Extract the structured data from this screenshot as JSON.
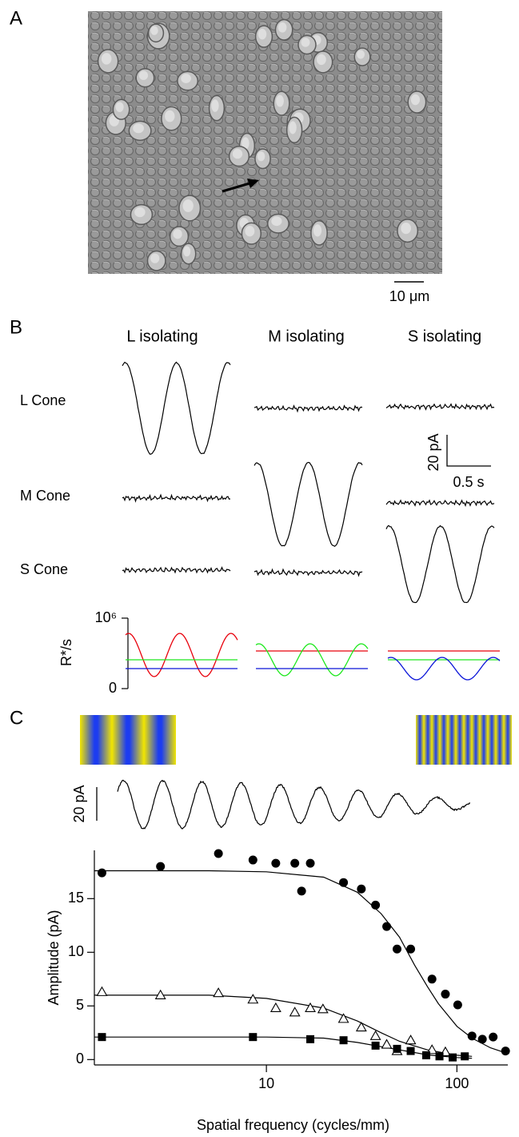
{
  "panels": {
    "a": {
      "label": "A",
      "scale_bar": "10 μm"
    },
    "b": {
      "label": "B",
      "columns": [
        "L isolating",
        "M isolating",
        "S isolating"
      ],
      "rows": [
        "L Cone",
        "M Cone",
        "S Cone"
      ],
      "scale_y": "20 pA",
      "scale_x": "0.5 s"
    },
    "c": {
      "label": "C",
      "scale_y": "20 pA"
    }
  },
  "chart_data": [
    {
      "type": "line",
      "ylabel": "R*/s",
      "ylim": [
        0,
        1000000
      ],
      "yticks": [
        {
          "value": 1000000,
          "label": "10⁶"
        },
        0
      ]
    },
    {
      "type": "scatter",
      "xlabel": "Spatial frequency (cycles/mm)",
      "ylabel": "Amplitude (pA)",
      "xscale": "log",
      "xlim": [
        1.25,
        185
      ],
      "ylim": [
        -0.5,
        19.5
      ],
      "xticks": [
        10,
        100
      ],
      "yticks": [
        0,
        5,
        10,
        15
      ],
      "series": [
        {
          "marker": "circle",
          "color": "#000000",
          "x": [
            1.37,
            2.78,
            5.6,
            8.5,
            11.2,
            14.1,
            15.3,
            17.0,
            25.4,
            31.5,
            37.4,
            42.8,
            48.5,
            57.2,
            74,
            87,
            101,
            120,
            136,
            155,
            180
          ],
          "values": [
            17.4,
            18.0,
            19.2,
            18.6,
            18.3,
            18.3,
            15.7,
            18.3,
            16.5,
            15.9,
            14.4,
            12.4,
            10.3,
            10.3,
            7.5,
            6.1,
            5.1,
            2.2,
            1.9,
            2.1,
            0.8
          ]
        },
        {
          "marker": "triangle",
          "color": "#000000",
          "x": [
            1.37,
            2.78,
            5.6,
            8.5,
            11.2,
            14.1,
            17.0,
            19.8,
            25.4,
            31.5,
            37.4,
            42.8,
            48.5,
            57.2,
            74,
            87
          ],
          "values": [
            6.3,
            6.0,
            6.2,
            5.6,
            4.8,
            4.4,
            4.8,
            4.7,
            3.8,
            3.0,
            2.2,
            1.4,
            0.8,
            1.8,
            0.9,
            0.7
          ]
        },
        {
          "marker": "square",
          "color": "#000000",
          "x": [
            1.37,
            8.5,
            17.0,
            25.4,
            37.4,
            48.5,
            57.2,
            69,
            81,
            95,
            110
          ],
          "values": [
            2.1,
            2.1,
            1.9,
            1.8,
            1.3,
            1.0,
            0.8,
            0.4,
            0.3,
            0.2,
            0.3
          ]
        },
        {
          "marker": "line",
          "color": "#000000",
          "x": [
            1.25,
            5,
            10,
            20,
            30,
            40,
            50,
            60,
            70,
            80,
            100,
            120,
            150,
            175
          ],
          "values": [
            17.6,
            17.6,
            17.5,
            17.0,
            15.6,
            13.6,
            11.4,
            8.8,
            6.8,
            5.2,
            3.1,
            2.0,
            1.1,
            0.7
          ]
        },
        {
          "marker": "line",
          "color": "#000000",
          "x": [
            1.25,
            5,
            10,
            20,
            30,
            40,
            50,
            70,
            100,
            120
          ],
          "values": [
            6.0,
            6.0,
            5.7,
            4.8,
            3.6,
            2.5,
            1.7,
            0.9,
            0.4,
            0.3
          ]
        },
        {
          "marker": "line",
          "color": "#000000",
          "x": [
            1.25,
            10,
            20,
            30,
            40,
            50,
            70,
            100,
            120
          ],
          "values": [
            2.1,
            2.1,
            2.0,
            1.6,
            1.2,
            0.9,
            0.44,
            0.19,
            0.12
          ]
        }
      ]
    }
  ]
}
